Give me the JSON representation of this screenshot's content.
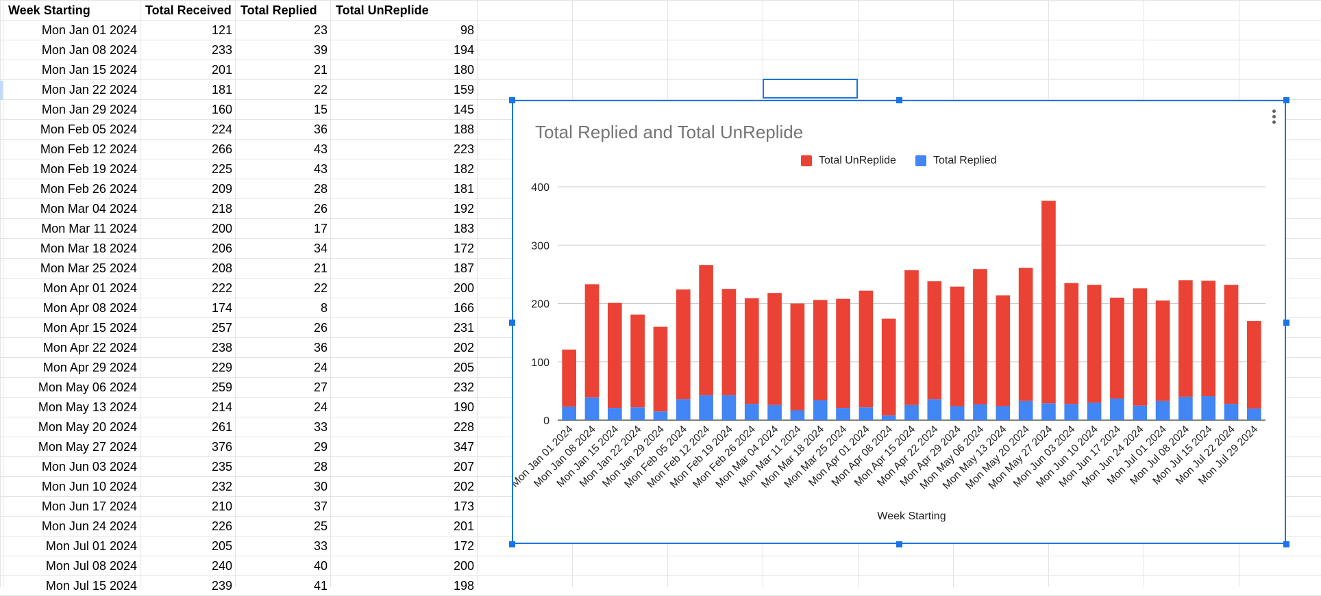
{
  "sheet": {
    "headers": [
      "Week Starting",
      "Total Received",
      "Total Replied",
      "Total UnReplide"
    ],
    "rows": [
      [
        "Mon Jan 01 2024",
        "121",
        "23",
        "98"
      ],
      [
        "Mon Jan 08 2024",
        "233",
        "39",
        "194"
      ],
      [
        "Mon Jan 15 2024",
        "201",
        "21",
        "180"
      ],
      [
        "Mon Jan 22 2024",
        "181",
        "22",
        "159"
      ],
      [
        "Mon Jan 29 2024",
        "160",
        "15",
        "145"
      ],
      [
        "Mon Feb 05 2024",
        "224",
        "36",
        "188"
      ],
      [
        "Mon Feb 12 2024",
        "266",
        "43",
        "223"
      ],
      [
        "Mon Feb 19 2024",
        "225",
        "43",
        "182"
      ],
      [
        "Mon Feb 26 2024",
        "209",
        "28",
        "181"
      ],
      [
        "Mon Mar 04 2024",
        "218",
        "26",
        "192"
      ],
      [
        "Mon Mar 11 2024",
        "200",
        "17",
        "183"
      ],
      [
        "Mon Mar 18 2024",
        "206",
        "34",
        "172"
      ],
      [
        "Mon Mar 25 2024",
        "208",
        "21",
        "187"
      ],
      [
        "Mon Apr 01 2024",
        "222",
        "22",
        "200"
      ],
      [
        "Mon Apr 08 2024",
        "174",
        "8",
        "166"
      ],
      [
        "Mon Apr 15 2024",
        "257",
        "26",
        "231"
      ],
      [
        "Mon Apr 22 2024",
        "238",
        "36",
        "202"
      ],
      [
        "Mon Apr 29 2024",
        "229",
        "24",
        "205"
      ],
      [
        "Mon May 06 2024",
        "259",
        "27",
        "232"
      ],
      [
        "Mon May 13 2024",
        "214",
        "24",
        "190"
      ],
      [
        "Mon May 20 2024",
        "261",
        "33",
        "228"
      ],
      [
        "Mon May 27 2024",
        "376",
        "29",
        "347"
      ],
      [
        "Mon Jun 03 2024",
        "235",
        "28",
        "207"
      ],
      [
        "Mon Jun 10 2024",
        "232",
        "30",
        "202"
      ],
      [
        "Mon Jun 17 2024",
        "210",
        "37",
        "173"
      ],
      [
        "Mon Jun 24 2024",
        "226",
        "25",
        "201"
      ],
      [
        "Mon Jul 01 2024",
        "205",
        "33",
        "172"
      ],
      [
        "Mon Jul 08 2024",
        "240",
        "40",
        "200"
      ],
      [
        "Mon Jul 15 2024",
        "239",
        "41",
        "198"
      ]
    ]
  },
  "colors": {
    "unreplied": "#ea4335",
    "replied": "#4285f4",
    "selection": "#1a73e8",
    "gridline": "#e2e3e3"
  },
  "chart_data": {
    "type": "bar",
    "stacked": true,
    "title": "Total Replied and Total UnReplide",
    "xlabel": "Week Starting",
    "ylabel": "",
    "ylim": [
      0,
      400
    ],
    "yticks": [
      0,
      100,
      200,
      300,
      400
    ],
    "legend_position": "top",
    "grid": true,
    "categories": [
      "Mon Jan 01 2024",
      "Mon Jan 08 2024",
      "Mon Jan 15 2024",
      "Mon Jan 22 2024",
      "Mon Jan 29 2024",
      "Mon Feb 05 2024",
      "Mon Feb 12 2024",
      "Mon Feb 19 2024",
      "Mon Feb 26 2024",
      "Mon Mar 04 2024",
      "Mon Mar 11 2024",
      "Mon Mar 18 2024",
      "Mon Mar 25 2024",
      "Mon Apr 01 2024",
      "Mon Apr 08 2024",
      "Mon Apr 15 2024",
      "Mon Apr 22 2024",
      "Mon Apr 29 2024",
      "Mon May 06 2024",
      "Mon May 13 2024",
      "Mon May 20 2024",
      "Mon May 27 2024",
      "Mon Jun 03 2024",
      "Mon Jun 10 2024",
      "Mon Jun 17 2024",
      "Mon Jun 24 2024",
      "Mon Jul 01 2024",
      "Mon Jul 08 2024",
      "Mon Jul 15 2024",
      "Mon Jul 22 2024",
      "Mon Jul 29 2024"
    ],
    "series": [
      {
        "name": "Total Replied",
        "values": [
          23,
          39,
          21,
          22,
          15,
          36,
          43,
          43,
          28,
          26,
          17,
          34,
          21,
          22,
          8,
          26,
          36,
          24,
          27,
          24,
          33,
          29,
          28,
          30,
          37,
          25,
          33,
          40,
          41,
          28,
          20
        ]
      },
      {
        "name": "Total UnReplide",
        "values": [
          98,
          194,
          180,
          159,
          145,
          188,
          223,
          182,
          181,
          192,
          183,
          172,
          187,
          200,
          166,
          231,
          202,
          205,
          232,
          190,
          228,
          347,
          207,
          202,
          173,
          201,
          172,
          200,
          198,
          204,
          150
        ]
      }
    ],
    "legend": [
      "Total UnReplide",
      "Total Replied"
    ]
  }
}
